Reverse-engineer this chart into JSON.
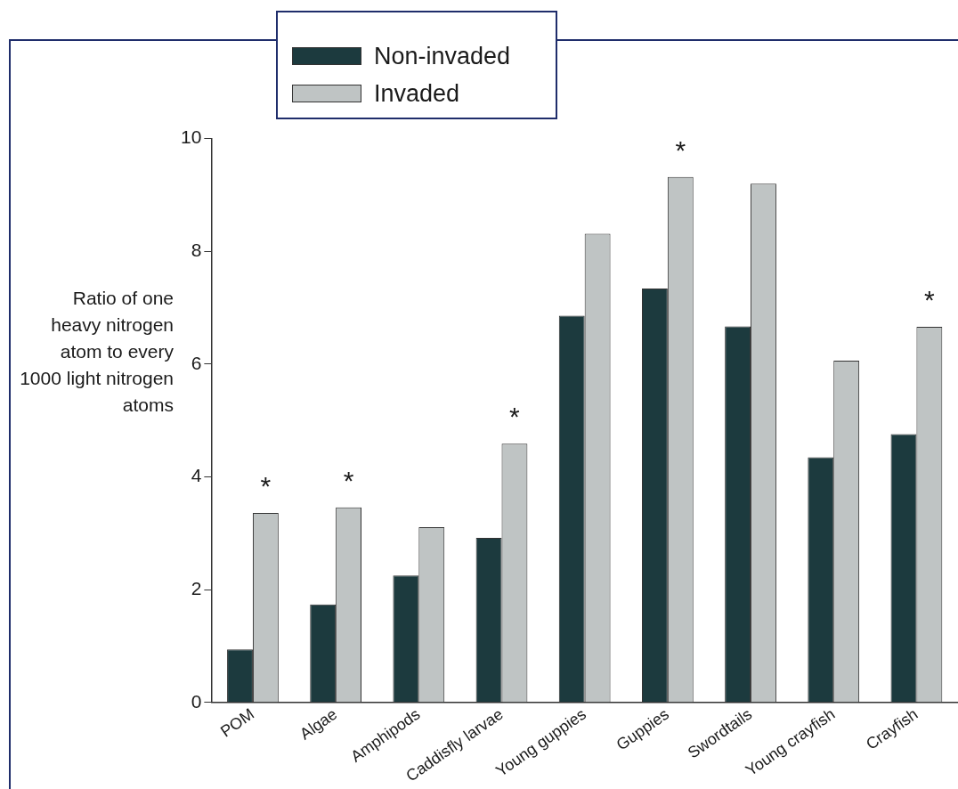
{
  "chart_data": {
    "type": "bar",
    "ylabel": "Ratio of one heavy nitrogen atom to every 1000 light nitrogen atoms",
    "categories": [
      "POM",
      "Algae",
      "Amphipods",
      "Caddisfly larvae",
      "Young guppies",
      "Guppies",
      "Swordtails",
      "Young crayfish",
      "Crayfish"
    ],
    "series": [
      {
        "name": "Non-invaded",
        "color": "#1c3a3e",
        "values": [
          0.94,
          1.74,
          2.25,
          2.92,
          6.86,
          7.34,
          6.67,
          4.35,
          4.76
        ]
      },
      {
        "name": "Invaded",
        "color": "#bfc4c4",
        "values": [
          3.36,
          3.46,
          3.11,
          4.59,
          8.31,
          9.32,
          9.2,
          6.06,
          6.66
        ]
      }
    ],
    "ylim": [
      0,
      10
    ],
    "yticks": [
      0,
      2,
      4,
      6,
      8,
      10
    ],
    "grid": false,
    "legend": "top",
    "annotations": [
      {
        "text": "*",
        "x": "POM",
        "y": 3.36
      },
      {
        "text": "*",
        "x": "Algae",
        "y": 3.46
      },
      {
        "text": "*",
        "x": "Caddisfly larvae",
        "y": 4.59
      },
      {
        "text": "*",
        "x": "Guppies",
        "y": 9.32
      },
      {
        "text": "*",
        "x": "Crayfish",
        "y": 6.66
      }
    ]
  }
}
